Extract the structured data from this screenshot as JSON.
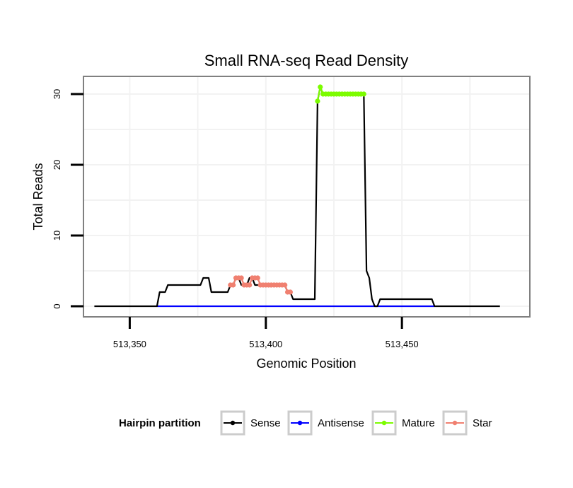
{
  "chart_data": {
    "type": "line",
    "title": "Small RNA-seq Read Density",
    "xlabel": "Genomic Position",
    "ylabel": "Total Reads",
    "xlim": [
      513333,
      513497
    ],
    "ylim": [
      -1.5,
      32.5
    ],
    "x_ticks": [
      513350,
      513400,
      513450
    ],
    "x_tick_labels": [
      "513,350",
      "513,400",
      "513,450"
    ],
    "y_ticks": [
      0,
      10,
      20,
      30
    ],
    "y_tick_labels": [
      "0",
      "10",
      "20",
      "30"
    ],
    "legend_title": "Hairpin partition",
    "legend_position": "bottom",
    "series": [
      {
        "name": "Sense",
        "color": "#000000",
        "markers": false,
        "x": [
          513337,
          513360,
          513361,
          513363,
          513364,
          513376,
          513377,
          513379,
          513380,
          513386,
          513387,
          513388,
          513389,
          513390,
          513391,
          513393,
          513394,
          513395,
          513396,
          513398,
          513399,
          513407,
          513408,
          513409,
          513410,
          513418,
          513419,
          513420,
          513421,
          513422,
          513435,
          513436,
          513437,
          513438,
          513439,
          513440,
          513441,
          513442,
          513461,
          513462,
          513486
        ],
        "y": [
          0,
          0,
          2,
          2,
          3,
          3,
          4,
          4,
          2,
          2,
          3,
          3,
          4,
          4,
          3,
          3,
          4,
          4,
          3,
          3,
          3,
          3,
          2,
          2,
          1,
          1,
          29,
          31,
          30,
          30,
          30,
          30,
          5,
          4,
          1,
          0,
          0,
          1,
          1,
          0,
          0
        ]
      },
      {
        "name": "Antisense",
        "color": "#0000ff",
        "markers": false,
        "x": [
          513360,
          513462
        ],
        "y": [
          0,
          0
        ]
      },
      {
        "name": "Mature",
        "color": "#7cfc00",
        "markers": true,
        "x": [
          513419,
          513420,
          513421,
          513422,
          513423,
          513424,
          513425,
          513426,
          513427,
          513428,
          513429,
          513430,
          513431,
          513432,
          513433,
          513434,
          513435,
          513436
        ],
        "y": [
          29,
          31,
          30,
          30,
          30,
          30,
          30,
          30,
          30,
          30,
          30,
          30,
          30,
          30,
          30,
          30,
          30,
          30
        ]
      },
      {
        "name": "Star",
        "color": "#f08070",
        "markers": true,
        "x": [
          513387,
          513388,
          513389,
          513390,
          513391,
          513392,
          513393,
          513394,
          513395,
          513396,
          513397,
          513398,
          513399,
          513400,
          513401,
          513402,
          513403,
          513404,
          513405,
          513406,
          513407,
          513408,
          513409
        ],
        "y": [
          3,
          3,
          4,
          4,
          4,
          3,
          3,
          3,
          4,
          4,
          4,
          3,
          3,
          3,
          3,
          3,
          3,
          3,
          3,
          3,
          3,
          2,
          2
        ]
      }
    ]
  }
}
